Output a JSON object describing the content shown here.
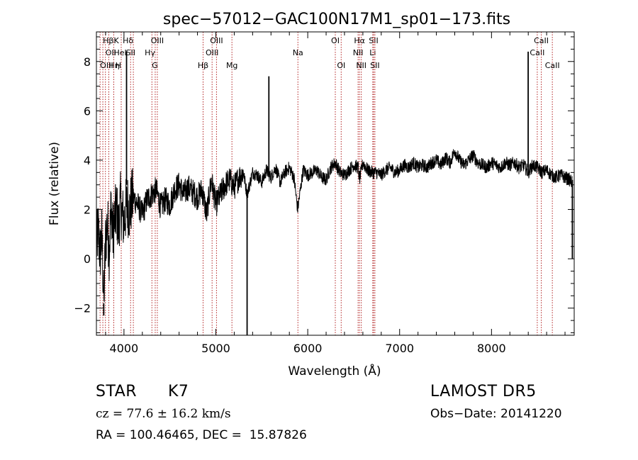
{
  "chart_data": {
    "type": "line",
    "title": "spec−57012−GAC100N17M1_sp01−173.fits",
    "xlabel": "Wavelength (Å)",
    "ylabel": "Flux (relative)",
    "xlim": [
      3700,
      8900
    ],
    "ylim": [
      -3.1,
      9.2
    ],
    "xticks": [
      4000,
      5000,
      6000,
      7000,
      8000
    ],
    "yticks": [
      -2,
      0,
      2,
      4,
      6,
      8
    ],
    "grid": false,
    "series": [
      {
        "x": [
          3700,
          3720,
          3740,
          3760,
          3780,
          3800,
          3820,
          3840,
          3860,
          3880,
          3900,
          3920,
          3940,
          3960,
          3980,
          4000,
          4020,
          4040,
          4060,
          4080,
          4100,
          4150,
          4200,
          4250,
          4300,
          4350,
          4400,
          4450,
          4500,
          4550,
          4600,
          4650,
          4700,
          4750,
          4800,
          4850,
          4900,
          4950,
          5000,
          5050,
          5100,
          5150,
          5200,
          5250,
          5300,
          5340,
          5400,
          5450,
          5500,
          5550,
          5580,
          5600,
          5650,
          5700,
          5750,
          5800,
          5850,
          5890,
          5950,
          6000,
          6050,
          6100,
          6150,
          6200,
          6250,
          6300,
          6350,
          6400,
          6450,
          6500,
          6550,
          6563,
          6600,
          6650,
          6700,
          6750,
          6800,
          6850,
          6900,
          6950,
          7000,
          7050,
          7100,
          7150,
          7200,
          7250,
          7300,
          7350,
          7400,
          7450,
          7500,
          7550,
          7600,
          7650,
          7700,
          7750,
          7800,
          7850,
          7900,
          7950,
          8000,
          8050,
          8100,
          8150,
          8200,
          8250,
          8300,
          8350,
          8400,
          8450,
          8500,
          8550,
          8600,
          8650,
          8700,
          8750,
          8800,
          8850,
          8880
        ],
        "y": [
          0.5,
          1.2,
          0.2,
          1.0,
          -1.8,
          0.8,
          1.5,
          0.3,
          2.2,
          1.0,
          1.6,
          2.0,
          1.2,
          2.3,
          1.8,
          1.5,
          2.0,
          2.2,
          1.9,
          2.3,
          2.5,
          2.2,
          1.8,
          2.4,
          2.6,
          2.8,
          2.1,
          2.4,
          2.2,
          2.8,
          3.0,
          2.6,
          2.9,
          2.7,
          2.5,
          2.8,
          1.8,
          3.2,
          2.2,
          2.6,
          3.0,
          3.2,
          2.9,
          3.3,
          3.5,
          2.6,
          3.5,
          3.4,
          3.1,
          3.6,
          3.4,
          3.3,
          3.7,
          3.1,
          3.5,
          3.7,
          3.3,
          2.0,
          3.6,
          3.4,
          3.5,
          3.6,
          3.3,
          3.2,
          3.7,
          3.9,
          3.5,
          3.4,
          3.6,
          3.8,
          3.7,
          3.2,
          3.9,
          3.6,
          3.5,
          3.5,
          3.4,
          3.6,
          3.7,
          3.5,
          3.6,
          3.8,
          3.7,
          3.9,
          3.7,
          3.8,
          3.7,
          3.9,
          4.0,
          3.8,
          4.1,
          3.9,
          4.4,
          4.0,
          3.8,
          4.0,
          4.2,
          3.9,
          3.8,
          3.7,
          3.9,
          3.8,
          3.7,
          3.9,
          3.8,
          3.9,
          3.7,
          3.8,
          3.5,
          3.8,
          3.7,
          3.5,
          3.6,
          3.4,
          3.3,
          3.4,
          3.3,
          3.2,
          3.1
        ]
      }
    ],
    "spikes": [
      {
        "x": 4028,
        "y0": 3.0,
        "y1": 8.4
      },
      {
        "x": 5340,
        "y0": 2.6,
        "y1": -3.1
      },
      {
        "x": 5577,
        "y0": 3.4,
        "y1": 7.4
      },
      {
        "x": 8399,
        "y0": 3.7,
        "y1": 8.4
      },
      {
        "x": 8880,
        "y0": 0.0,
        "y1": 3.2
      },
      {
        "x": 3780,
        "y0": -1.8,
        "y1": -2.3
      }
    ],
    "line_color": "#000000",
    "marker_color": "#b22222",
    "lines": [
      {
        "x": 3770,
        "label": "Hβ",
        "row": 0,
        "anchor": "start"
      },
      {
        "x": 3798,
        "label": "OII",
        "row": 1,
        "anchor": "start"
      },
      {
        "x": 3740,
        "label": "OIII",
        "row": 2,
        "anchor": "start"
      },
      {
        "x": 3835,
        "label": "Hη",
        "row": 2,
        "anchor": "start"
      },
      {
        "x": 3889,
        "label": "K",
        "row": 0,
        "anchor": "start"
      },
      {
        "x": 3889,
        "label": "HeI",
        "row": 1,
        "anchor": "start"
      },
      {
        "x": 3970,
        "label": "H",
        "row": 2,
        "anchor": "end"
      },
      {
        "x": 4102,
        "label": "Hδ",
        "row": 0,
        "anchor": "end"
      },
      {
        "x": 4072,
        "label": "SII",
        "row": 1,
        "anchor": "middle"
      },
      {
        "x": 4340,
        "label": "Hγ",
        "row": 1,
        "anchor": "end"
      },
      {
        "x": 4304,
        "label": "G",
        "row": 2,
        "anchor": "start"
      },
      {
        "x": 4363,
        "label": "OIII",
        "row": 0,
        "anchor": "middle"
      },
      {
        "x": 4861,
        "label": "Hβ",
        "row": 2,
        "anchor": "middle"
      },
      {
        "x": 4959,
        "label": "OIII",
        "row": 1,
        "anchor": "middle"
      },
      {
        "x": 5007,
        "label": "OIII",
        "row": 0,
        "anchor": "middle"
      },
      {
        "x": 5175,
        "label": "Mg",
        "row": 2,
        "anchor": "middle"
      },
      {
        "x": 5893,
        "label": "Na",
        "row": 1,
        "anchor": "middle"
      },
      {
        "x": 6300,
        "label": "OI",
        "row": 0,
        "anchor": "middle"
      },
      {
        "x": 6364,
        "label": "OI",
        "row": 2,
        "anchor": "middle"
      },
      {
        "x": 6563,
        "label": "Hα",
        "row": 0,
        "anchor": "middle"
      },
      {
        "x": 6548,
        "label": "NII",
        "row": 1,
        "anchor": "middle"
      },
      {
        "x": 6583,
        "label": "NII",
        "row": 2,
        "anchor": "middle"
      },
      {
        "x": 6717,
        "label": "SII",
        "row": 0,
        "anchor": "middle"
      },
      {
        "x": 6708,
        "label": "Li",
        "row": 1,
        "anchor": "middle"
      },
      {
        "x": 6731,
        "label": "SII",
        "row": 2,
        "anchor": "middle"
      },
      {
        "x": 8498,
        "label": "CaII",
        "row": 1,
        "anchor": "middle"
      },
      {
        "x": 8542,
        "label": "CaII",
        "row": 0,
        "anchor": "middle"
      },
      {
        "x": 8662,
        "label": "CaII",
        "row": 2,
        "anchor": "middle"
      }
    ]
  },
  "info": {
    "class_label": "STAR",
    "subclass": "K7",
    "survey": "LAMOST DR5",
    "cz": "cz = 77.6 ± 16.2 km/s",
    "obs_date": "Obs−Date: 20141220",
    "coords": "RA = 100.46465, DEC =  15.87826"
  }
}
